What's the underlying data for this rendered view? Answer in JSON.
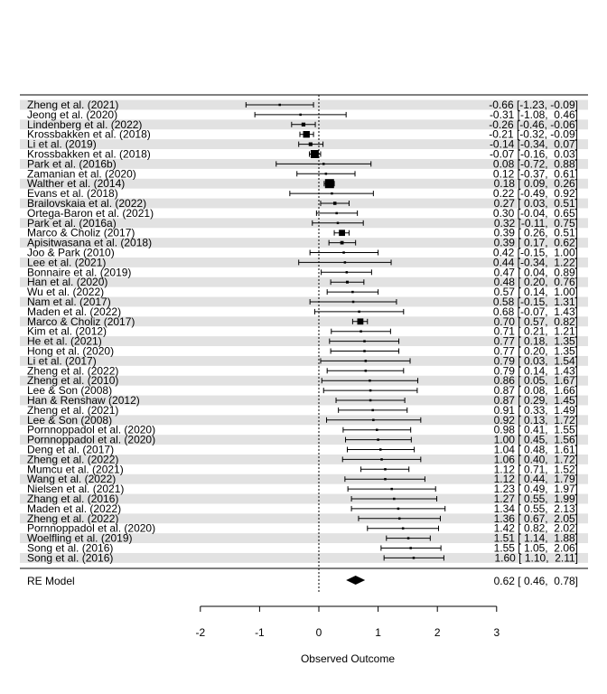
{
  "chart_data": {
    "type": "forest",
    "xlabel": "Observed Outcome",
    "xlim": [
      -2,
      3
    ],
    "xticks": [
      -2,
      -1,
      0,
      1,
      2,
      3
    ],
    "reference_line": 0,
    "studies": [
      {
        "label": "Zheng et al. (2021)",
        "estimate": -0.66,
        "ci_low": -1.23,
        "ci_high": -0.09,
        "text": "-0.66 [-1.23, -0.09]"
      },
      {
        "label": "Jeong et al. (2020)",
        "estimate": -0.31,
        "ci_low": -1.08,
        "ci_high": 0.46,
        "text": "-0.31 [-1.08,  0.46]"
      },
      {
        "label": "Lindenberg et al. (2022)",
        "estimate": -0.26,
        "ci_low": -0.46,
        "ci_high": -0.06,
        "text": "-0.26 [-0.46, -0.06]"
      },
      {
        "label": "Krossbakken et al. (2018)",
        "estimate": -0.21,
        "ci_low": -0.32,
        "ci_high": -0.09,
        "text": "-0.21 [-0.32, -0.09]"
      },
      {
        "label": "Li et al. (2019)",
        "estimate": -0.14,
        "ci_low": -0.34,
        "ci_high": 0.07,
        "text": "-0.14 [-0.34,  0.07]"
      },
      {
        "label": "Krossbakken et al. (2018)",
        "estimate": -0.07,
        "ci_low": -0.16,
        "ci_high": 0.03,
        "text": "-0.07 [-0.16,  0.03]"
      },
      {
        "label": "Park et al. (2016b)",
        "estimate": 0.08,
        "ci_low": -0.72,
        "ci_high": 0.88,
        "text": "0.08 [-0.72,  0.88]"
      },
      {
        "label": "Zamanian et al. (2020)",
        "estimate": 0.12,
        "ci_low": -0.37,
        "ci_high": 0.61,
        "text": "0.12 [-0.37,  0.61]"
      },
      {
        "label": "Walther et al. (2014)",
        "estimate": 0.18,
        "ci_low": 0.09,
        "ci_high": 0.26,
        "text": "0.18 [ 0.09,  0.26]"
      },
      {
        "label": "Evans et al. (2018)",
        "estimate": 0.22,
        "ci_low": -0.49,
        "ci_high": 0.92,
        "text": "0.22 [-0.49,  0.92]"
      },
      {
        "label": "Brailovskaia et al. (2022)",
        "estimate": 0.27,
        "ci_low": 0.03,
        "ci_high": 0.51,
        "text": "0.27 [ 0.03,  0.51]"
      },
      {
        "label": "Ortega-Baron et al. (2021)",
        "estimate": 0.3,
        "ci_low": -0.04,
        "ci_high": 0.65,
        "text": "0.30 [-0.04,  0.65]"
      },
      {
        "label": "Park et al. (2016a)",
        "estimate": 0.32,
        "ci_low": -0.11,
        "ci_high": 0.75,
        "text": "0.32 [-0.11,  0.75]"
      },
      {
        "label": "Marco & Choliz (2017)",
        "estimate": 0.39,
        "ci_low": 0.26,
        "ci_high": 0.51,
        "text": "0.39 [ 0.26,  0.51]"
      },
      {
        "label": "Apisitwasana et al. (2018)",
        "estimate": 0.39,
        "ci_low": 0.17,
        "ci_high": 0.62,
        "text": "0.39 [ 0.17,  0.62]"
      },
      {
        "label": "Joo & Park (2010)",
        "estimate": 0.42,
        "ci_low": -0.15,
        "ci_high": 1.0,
        "text": "0.42 [-0.15,  1.00]"
      },
      {
        "label": "Lee et al. (2021)",
        "estimate": 0.44,
        "ci_low": -0.34,
        "ci_high": 1.22,
        "text": "0.44 [-0.34,  1.22]"
      },
      {
        "label": "Bonnaire et al. (2019)",
        "estimate": 0.47,
        "ci_low": 0.04,
        "ci_high": 0.89,
        "text": "0.47 [ 0.04,  0.89]"
      },
      {
        "label": "Han et al. (2020)",
        "estimate": 0.48,
        "ci_low": 0.2,
        "ci_high": 0.76,
        "text": "0.48 [ 0.20,  0.76]"
      },
      {
        "label": "Wu et al. (2022)",
        "estimate": 0.57,
        "ci_low": 0.14,
        "ci_high": 1.0,
        "text": "0.57 [ 0.14,  1.00]"
      },
      {
        "label": "Nam et al. (2017)",
        "estimate": 0.58,
        "ci_low": -0.15,
        "ci_high": 1.31,
        "text": "0.58 [-0.15,  1.31]"
      },
      {
        "label": "Maden et al. (2022)",
        "estimate": 0.68,
        "ci_low": -0.07,
        "ci_high": 1.43,
        "text": "0.68 [-0.07,  1.43]"
      },
      {
        "label": "Marco & Choliz (2017)",
        "estimate": 0.7,
        "ci_low": 0.57,
        "ci_high": 0.82,
        "text": "0.70 [ 0.57,  0.82]"
      },
      {
        "label": "Kim et al. (2012)",
        "estimate": 0.71,
        "ci_low": 0.21,
        "ci_high": 1.21,
        "text": "0.71 [ 0.21,  1.21]"
      },
      {
        "label": "He et al. (2021)",
        "estimate": 0.77,
        "ci_low": 0.18,
        "ci_high": 1.35,
        "text": "0.77 [ 0.18,  1.35]"
      },
      {
        "label": "Hong et al. (2020)",
        "estimate": 0.77,
        "ci_low": 0.2,
        "ci_high": 1.35,
        "text": "0.77 [ 0.20,  1.35]"
      },
      {
        "label": "Li et al. (2017)",
        "estimate": 0.79,
        "ci_low": 0.03,
        "ci_high": 1.54,
        "text": "0.79 [ 0.03,  1.54]"
      },
      {
        "label": "Zheng et al. (2022)",
        "estimate": 0.79,
        "ci_low": 0.14,
        "ci_high": 1.43,
        "text": "0.79 [ 0.14,  1.43]"
      },
      {
        "label": "Zheng et al. (2010)",
        "estimate": 0.86,
        "ci_low": 0.05,
        "ci_high": 1.67,
        "text": "0.86 [ 0.05,  1.67]"
      },
      {
        "label": "Lee & Son (2008)",
        "estimate": 0.87,
        "ci_low": 0.08,
        "ci_high": 1.66,
        "text": "0.87 [ 0.08,  1.66]"
      },
      {
        "label": "Han & Renshaw (2012)",
        "estimate": 0.87,
        "ci_low": 0.29,
        "ci_high": 1.45,
        "text": "0.87 [ 0.29,  1.45]"
      },
      {
        "label": "Zheng et al. (2021)",
        "estimate": 0.91,
        "ci_low": 0.33,
        "ci_high": 1.49,
        "text": "0.91 [ 0.33,  1.49]"
      },
      {
        "label": "Lee & Son (2008)",
        "estimate": 0.92,
        "ci_low": 0.13,
        "ci_high": 1.72,
        "text": "0.92 [ 0.13,  1.72]"
      },
      {
        "label": "Pornnoppadol et al. (2020)",
        "estimate": 0.98,
        "ci_low": 0.41,
        "ci_high": 1.55,
        "text": "0.98 [ 0.41,  1.55]"
      },
      {
        "label": "Pornnoppadol et al. (2020)",
        "estimate": 1.0,
        "ci_low": 0.45,
        "ci_high": 1.56,
        "text": "1.00 [ 0.45,  1.56]"
      },
      {
        "label": "Deng et al. (2017)",
        "estimate": 1.04,
        "ci_low": 0.48,
        "ci_high": 1.61,
        "text": "1.04 [ 0.48,  1.61]"
      },
      {
        "label": "Zheng et al. (2022)",
        "estimate": 1.06,
        "ci_low": 0.4,
        "ci_high": 1.72,
        "text": "1.06 [ 0.40,  1.72]"
      },
      {
        "label": "Mumcu et al. (2021)",
        "estimate": 1.12,
        "ci_low": 0.71,
        "ci_high": 1.52,
        "text": "1.12 [ 0.71,  1.52]"
      },
      {
        "label": "Wang et al. (2022)",
        "estimate": 1.12,
        "ci_low": 0.44,
        "ci_high": 1.79,
        "text": "1.12 [ 0.44,  1.79]"
      },
      {
        "label": "Nielsen et al. (2021)",
        "estimate": 1.23,
        "ci_low": 0.49,
        "ci_high": 1.97,
        "text": "1.23 [ 0.49,  1.97]"
      },
      {
        "label": "Zhang et al. (2016)",
        "estimate": 1.27,
        "ci_low": 0.55,
        "ci_high": 1.99,
        "text": "1.27 [ 0.55,  1.99]"
      },
      {
        "label": "Maden et al. (2022)",
        "estimate": 1.34,
        "ci_low": 0.55,
        "ci_high": 2.13,
        "text": "1.34 [ 0.55,  2.13]"
      },
      {
        "label": "Zheng et al. (2022)",
        "estimate": 1.36,
        "ci_low": 0.67,
        "ci_high": 2.05,
        "text": "1.36 [ 0.67,  2.05]"
      },
      {
        "label": "Pornnoppadol et al. (2020)",
        "estimate": 1.42,
        "ci_low": 0.82,
        "ci_high": 2.02,
        "text": "1.42 [ 0.82,  2.02]"
      },
      {
        "label": "Woelfling et al. (2019)",
        "estimate": 1.51,
        "ci_low": 1.14,
        "ci_high": 1.88,
        "text": "1.51 [ 1.14,  1.88]"
      },
      {
        "label": "Song et al. (2016)",
        "estimate": 1.55,
        "ci_low": 1.05,
        "ci_high": 2.06,
        "text": "1.55 [ 1.05,  2.06]"
      },
      {
        "label": "Song et al. (2016)",
        "estimate": 1.6,
        "ci_low": 1.1,
        "ci_high": 2.11,
        "text": "1.60 [ 1.10,  2.11]"
      }
    ],
    "summary": {
      "label": "RE Model",
      "estimate": 0.62,
      "ci_low": 0.46,
      "ci_high": 0.78,
      "text": "0.62 [ 0.46,  0.78]"
    },
    "colors": {
      "stripe": "#e2e2e2",
      "marker": "#000000",
      "reference_line": "#000000"
    }
  }
}
